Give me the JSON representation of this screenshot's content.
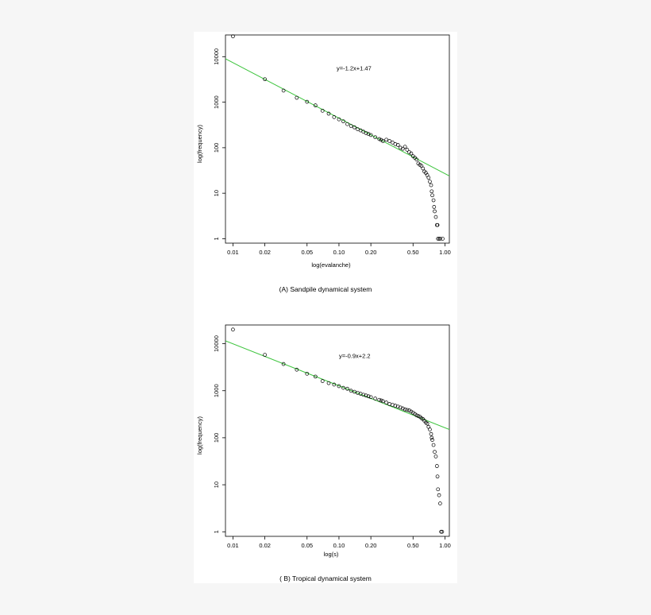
{
  "chart_data": [
    {
      "type": "scatter",
      "panel_caption": "(A)  Sandpile dynamical system",
      "xlabel": "log(evalanche)",
      "ylabel": "log(frequency)",
      "x_scale": "log",
      "y_scale": "log",
      "xlim": [
        0.0085,
        1.1
      ],
      "ylim": [
        0.8,
        30000
      ],
      "x_ticks": [
        0.01,
        0.02,
        0.05,
        0.1,
        0.2,
        0.5,
        1.0
      ],
      "x_tick_labels": [
        "0.01",
        "0.02",
        "0.05",
        "0.10",
        "0.20",
        "0.50",
        "1.00"
      ],
      "y_ticks": [
        1,
        10,
        100,
        1000,
        10000
      ],
      "y_tick_labels": [
        "1",
        "10",
        "100",
        "1000",
        "10000"
      ],
      "grid": false,
      "fit_line": {
        "slope": -1.2,
        "intercept": 1.47,
        "color": "#3cc43c",
        "x_range": [
          0.0085,
          1.1
        ]
      },
      "annotation": "y=-1.2x+1.47",
      "annotation_at": [
        0.095,
        5000
      ],
      "marker_color": "#000000",
      "series": [
        {
          "points": [
            [
              0.01,
              28000
            ],
            [
              0.02,
              3200
            ],
            [
              0.03,
              1800
            ],
            [
              0.04,
              1250
            ],
            [
              0.05,
              1020
            ],
            [
              0.06,
              850
            ],
            [
              0.07,
              650
            ],
            [
              0.08,
              560
            ],
            [
              0.09,
              470
            ],
            [
              0.1,
              420
            ],
            [
              0.11,
              380
            ],
            [
              0.12,
              330
            ],
            [
              0.13,
              300
            ],
            [
              0.14,
              280
            ],
            [
              0.15,
              255
            ],
            [
              0.16,
              240
            ],
            [
              0.17,
              225
            ],
            [
              0.18,
              210
            ],
            [
              0.19,
              200
            ],
            [
              0.2,
              190
            ],
            [
              0.22,
              170
            ],
            [
              0.24,
              155
            ],
            [
              0.25,
              148
            ],
            [
              0.26,
              140
            ],
            [
              0.28,
              150
            ],
            [
              0.3,
              140
            ],
            [
              0.32,
              130
            ],
            [
              0.34,
              120
            ],
            [
              0.36,
              115
            ],
            [
              0.38,
              100
            ],
            [
              0.4,
              95
            ],
            [
              0.42,
              105
            ],
            [
              0.44,
              90
            ],
            [
              0.46,
              80
            ],
            [
              0.48,
              75
            ],
            [
              0.5,
              65
            ],
            [
              0.52,
              60
            ],
            [
              0.54,
              55
            ],
            [
              0.56,
              45
            ],
            [
              0.58,
              42
            ],
            [
              0.6,
              40
            ],
            [
              0.62,
              35
            ],
            [
              0.64,
              30
            ],
            [
              0.66,
              28
            ],
            [
              0.68,
              25
            ],
            [
              0.7,
              22
            ],
            [
              0.72,
              18
            ],
            [
              0.74,
              15
            ],
            [
              0.75,
              11
            ],
            [
              0.76,
              9
            ],
            [
              0.78,
              7
            ],
            [
              0.79,
              5
            ],
            [
              0.8,
              4
            ],
            [
              0.82,
              3
            ],
            [
              0.84,
              2
            ],
            [
              0.85,
              2
            ],
            [
              0.86,
              1
            ],
            [
              0.88,
              1
            ],
            [
              0.9,
              1
            ],
            [
              0.95,
              1
            ]
          ]
        }
      ]
    },
    {
      "type": "scatter",
      "panel_caption": "( B)  Tropical dynamical system",
      "xlabel": "log(s)",
      "ylabel": "log(frequency)",
      "x_scale": "log",
      "y_scale": "log",
      "xlim": [
        0.0085,
        1.1
      ],
      "ylim": [
        0.8,
        25000
      ],
      "x_ticks": [
        0.01,
        0.02,
        0.05,
        0.1,
        0.2,
        0.5,
        1.0
      ],
      "x_tick_labels": [
        "0.01",
        "0.02",
        "0.05",
        "0.10",
        "0.20",
        "0.50",
        "1.00"
      ],
      "y_ticks": [
        1,
        10,
        100,
        1000,
        10000
      ],
      "y_tick_labels": [
        "1",
        "10",
        "100",
        "1000",
        "10000"
      ],
      "grid": false,
      "fit_line": {
        "slope": -0.9,
        "intercept": 2.2,
        "color": "#3cc43c",
        "x_range": [
          0.0085,
          1.1
        ]
      },
      "annotation": "y=-0.9x+2.2",
      "annotation_at": [
        0.1,
        5000
      ],
      "marker_color": "#000000",
      "series": [
        {
          "points": [
            [
              0.01,
              20000
            ],
            [
              0.02,
              5800
            ],
            [
              0.03,
              3700
            ],
            [
              0.04,
              2800
            ],
            [
              0.05,
              2300
            ],
            [
              0.06,
              2000
            ],
            [
              0.07,
              1600
            ],
            [
              0.08,
              1450
            ],
            [
              0.09,
              1350
            ],
            [
              0.1,
              1250
            ],
            [
              0.11,
              1150
            ],
            [
              0.12,
              1100
            ],
            [
              0.13,
              1000
            ],
            [
              0.14,
              950
            ],
            [
              0.15,
              900
            ],
            [
              0.16,
              860
            ],
            [
              0.17,
              820
            ],
            [
              0.18,
              790
            ],
            [
              0.19,
              760
            ],
            [
              0.2,
              730
            ],
            [
              0.22,
              680
            ],
            [
              0.24,
              640
            ],
            [
              0.25,
              620
            ],
            [
              0.26,
              600
            ],
            [
              0.28,
              560
            ],
            [
              0.3,
              520
            ],
            [
              0.32,
              500
            ],
            [
              0.34,
              480
            ],
            [
              0.36,
              460
            ],
            [
              0.38,
              440
            ],
            [
              0.4,
              420
            ],
            [
              0.42,
              400
            ],
            [
              0.44,
              390
            ],
            [
              0.46,
              380
            ],
            [
              0.48,
              360
            ],
            [
              0.5,
              340
            ],
            [
              0.52,
              320
            ],
            [
              0.54,
              300
            ],
            [
              0.56,
              290
            ],
            [
              0.58,
              280
            ],
            [
              0.6,
              260
            ],
            [
              0.62,
              250
            ],
            [
              0.64,
              230
            ],
            [
              0.66,
              210
            ],
            [
              0.68,
              200
            ],
            [
              0.7,
              170
            ],
            [
              0.72,
              150
            ],
            [
              0.74,
              120
            ],
            [
              0.75,
              100
            ],
            [
              0.76,
              90
            ],
            [
              0.78,
              70
            ],
            [
              0.8,
              50
            ],
            [
              0.82,
              40
            ],
            [
              0.84,
              25
            ],
            [
              0.85,
              15
            ],
            [
              0.86,
              8
            ],
            [
              0.88,
              6
            ],
            [
              0.9,
              4
            ],
            [
              0.92,
              1
            ],
            [
              0.94,
              1
            ]
          ]
        }
      ]
    }
  ]
}
